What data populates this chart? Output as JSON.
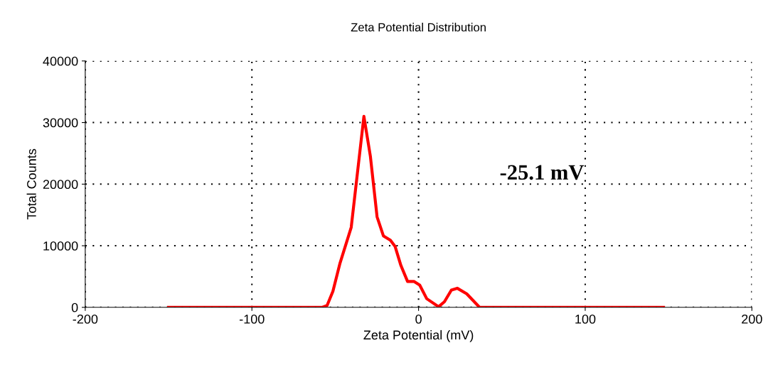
{
  "chart_data": {
    "type": "line",
    "title": "Zeta Potential Distribution",
    "xlabel": "Zeta Potential (mV)",
    "ylabel": "Total Counts",
    "x": [
      -150,
      -57.7,
      -54.9,
      -51.4,
      -47.1,
      -40.4,
      -32.8,
      -28.9,
      -24.9,
      -21.1,
      -16.9,
      -14.1,
      -10.6,
      -6.6,
      -2.8,
      0.7,
      4.9,
      12.0,
      15.5,
      19.7,
      23.2,
      28.9,
      36.6,
      147
    ],
    "series": [
      {
        "color": "#ff0000",
        "values": [
          0,
          0,
          300,
          2600,
          7200,
          13000,
          31000,
          24500,
          14700,
          11600,
          10900,
          9900,
          6800,
          4200,
          4200,
          3600,
          1400,
          100,
          900,
          2800,
          3100,
          2200,
          0,
          0
        ]
      }
    ],
    "xlim": [
      -200,
      200
    ],
    "xticks": [
      -200,
      -100,
      0,
      100,
      200
    ],
    "ylim": [
      0,
      40000
    ],
    "yticks": [
      0,
      10000,
      20000,
      30000,
      40000
    ],
    "grid": true,
    "line_style": "solid",
    "marker": "none",
    "annotations": [
      "-25.1 mV"
    ]
  }
}
